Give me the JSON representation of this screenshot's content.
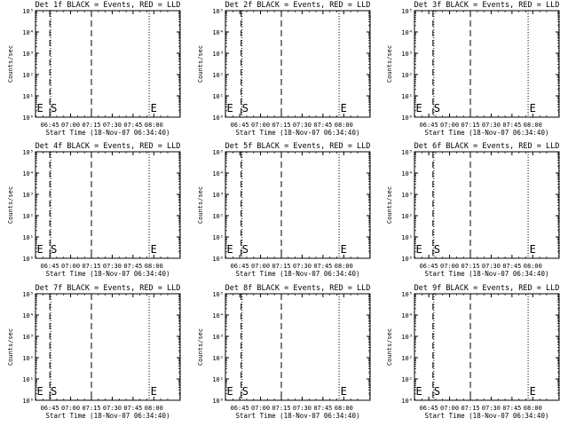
{
  "figure": {
    "ylabel": "Counts/sec",
    "start_time_label": "Start Time (18-Nov-07 06:34:40)",
    "x_tick_labels": [
      "06:45",
      "07:00",
      "07:15",
      "07:30",
      "07:45",
      "08:00"
    ],
    "y_tick_labels": [
      "10⁰",
      "10¹",
      "10²",
      "10³",
      "10⁴",
      "10⁵"
    ]
  },
  "chart_data": [
    {
      "type": "line",
      "title": "Det 1f BLACK = Events, RED = LLD",
      "xlabel": "Start Time (18-Nov-07 06:34:40)",
      "ylabel": "Counts/sec",
      "y_scale": "log",
      "ylim": [
        1,
        100000
      ],
      "xlim": [
        "06:34:40",
        "08:19"
      ],
      "x_ticks": [
        "06:45",
        "07:00",
        "07:15",
        "07:30",
        "07:45",
        "08:00"
      ],
      "y_ticks": [
        1,
        10,
        100,
        1000,
        10000,
        100000
      ],
      "series": [],
      "markers": [
        {
          "text": "E",
          "x": "06:35"
        },
        {
          "text": "S",
          "x": "06:45"
        },
        {
          "text": "E",
          "x": "07:57"
        }
      ],
      "vlines": {
        "dashed": [
          "06:45",
          "07:15"
        ],
        "dotted": [
          "06:45",
          "07:56",
          "08:18"
        ]
      }
    },
    {
      "type": "line",
      "title": "Det 2f BLACK = Events, RED = LLD",
      "xlabel": "Start Time (18-Nov-07 06:34:40)",
      "ylabel": "Counts/sec",
      "y_scale": "log",
      "ylim": [
        1,
        100000
      ],
      "xlim": [
        "06:34:40",
        "08:19"
      ],
      "x_ticks": [
        "06:45",
        "07:00",
        "07:15",
        "07:30",
        "07:45",
        "08:00"
      ],
      "y_ticks": [
        1,
        10,
        100,
        1000,
        10000,
        100000
      ],
      "series": [],
      "markers": [
        {
          "text": "E",
          "x": "06:35"
        },
        {
          "text": "S",
          "x": "06:46"
        },
        {
          "text": "E",
          "x": "07:57"
        }
      ],
      "vlines": {
        "dashed": [
          "06:46",
          "07:15"
        ],
        "dotted": [
          "06:46",
          "07:56",
          "08:18"
        ]
      }
    },
    {
      "type": "line",
      "title": "Det 3f BLACK = Events, RED = LLD",
      "xlabel": "Start Time (18-Nov-07 06:34:40)",
      "ylabel": "Counts/sec",
      "y_scale": "log",
      "ylim": [
        1,
        100000
      ],
      "xlim": [
        "06:34:40",
        "08:19"
      ],
      "x_ticks": [
        "06:45",
        "07:00",
        "07:15",
        "07:30",
        "07:45",
        "08:00"
      ],
      "y_ticks": [
        1,
        10,
        100,
        1000,
        10000,
        100000
      ],
      "series": [],
      "markers": [
        {
          "text": "E",
          "x": "06:35"
        },
        {
          "text": "S",
          "x": "06:48"
        },
        {
          "text": "E",
          "x": "07:57"
        }
      ],
      "vlines": {
        "dashed": [
          "06:48",
          "07:15"
        ],
        "dotted": [
          "06:48",
          "07:56",
          "08:18"
        ]
      }
    },
    {
      "type": "line",
      "title": "Det 4f BLACK = Events, RED = LLD",
      "xlabel": "Start Time (18-Nov-07 06:34:40)",
      "ylabel": "Counts/sec",
      "y_scale": "log",
      "ylim": [
        1,
        100000
      ],
      "xlim": [
        "06:34:40",
        "08:19"
      ],
      "x_ticks": [
        "06:45",
        "07:00",
        "07:15",
        "07:30",
        "07:45",
        "08:00"
      ],
      "y_ticks": [
        1,
        10,
        100,
        1000,
        10000,
        100000
      ],
      "series": [],
      "markers": [
        {
          "text": "E",
          "x": "06:35"
        },
        {
          "text": "S",
          "x": "06:45"
        },
        {
          "text": "E",
          "x": "07:57"
        }
      ],
      "vlines": {
        "dashed": [
          "06:45",
          "07:15"
        ],
        "dotted": [
          "06:45",
          "07:56",
          "08:18"
        ]
      }
    },
    {
      "type": "line",
      "title": "Det 5f BLACK = Events, RED = LLD",
      "xlabel": "Start Time (18-Nov-07 06:34:40)",
      "ylabel": "Counts/sec",
      "y_scale": "log",
      "ylim": [
        1,
        100000
      ],
      "xlim": [
        "06:34:40",
        "08:19"
      ],
      "x_ticks": [
        "06:45",
        "07:00",
        "07:15",
        "07:30",
        "07:45",
        "08:00"
      ],
      "y_ticks": [
        1,
        10,
        100,
        1000,
        10000,
        100000
      ],
      "series": [],
      "markers": [
        {
          "text": "E",
          "x": "06:35"
        },
        {
          "text": "S",
          "x": "06:46"
        },
        {
          "text": "E",
          "x": "07:57"
        }
      ],
      "vlines": {
        "dashed": [
          "06:46",
          "07:15"
        ],
        "dotted": [
          "06:46",
          "07:56",
          "08:18"
        ]
      }
    },
    {
      "type": "line",
      "title": "Det 6f BLACK = Events, RED = LLD",
      "xlabel": "Start Time (18-Nov-07 06:34:40)",
      "ylabel": "Counts/sec",
      "y_scale": "log",
      "ylim": [
        1,
        100000
      ],
      "xlim": [
        "06:34:40",
        "08:19"
      ],
      "x_ticks": [
        "06:45",
        "07:00",
        "07:15",
        "07:30",
        "07:45",
        "08:00"
      ],
      "y_ticks": [
        1,
        10,
        100,
        1000,
        10000,
        100000
      ],
      "series": [],
      "markers": [
        {
          "text": "E",
          "x": "06:35"
        },
        {
          "text": "S",
          "x": "06:48"
        },
        {
          "text": "E",
          "x": "07:57"
        }
      ],
      "vlines": {
        "dashed": [
          "06:48",
          "07:15"
        ],
        "dotted": [
          "06:48",
          "07:56",
          "08:18"
        ]
      }
    },
    {
      "type": "line",
      "title": "Det 7f BLACK = Events, RED = LLD",
      "xlabel": "Start Time (18-Nov-07 06:34:40)",
      "ylabel": "Counts/sec",
      "y_scale": "log",
      "ylim": [
        1,
        100000
      ],
      "xlim": [
        "06:34:40",
        "08:19"
      ],
      "x_ticks": [
        "06:45",
        "07:00",
        "07:15",
        "07:30",
        "07:45",
        "08:00"
      ],
      "y_ticks": [
        1,
        10,
        100,
        1000,
        10000,
        100000
      ],
      "series": [],
      "markers": [
        {
          "text": "E",
          "x": "06:35"
        },
        {
          "text": "S",
          "x": "06:45"
        },
        {
          "text": "E",
          "x": "07:57"
        }
      ],
      "vlines": {
        "dashed": [
          "06:45",
          "07:15"
        ],
        "dotted": [
          "06:45",
          "07:56",
          "08:18"
        ]
      }
    },
    {
      "type": "line",
      "title": "Det 8f BLACK = Events, RED = LLD",
      "xlabel": "Start Time (18-Nov-07 06:34:40)",
      "ylabel": "Counts/sec",
      "y_scale": "log",
      "ylim": [
        1,
        100000
      ],
      "xlim": [
        "06:34:40",
        "08:19"
      ],
      "x_ticks": [
        "06:45",
        "07:00",
        "07:15",
        "07:30",
        "07:45",
        "08:00"
      ],
      "y_ticks": [
        1,
        10,
        100,
        1000,
        10000,
        100000
      ],
      "series": [],
      "markers": [
        {
          "text": "E",
          "x": "06:35"
        },
        {
          "text": "S",
          "x": "06:46"
        },
        {
          "text": "E",
          "x": "07:57"
        }
      ],
      "vlines": {
        "dashed": [
          "06:46",
          "07:15"
        ],
        "dotted": [
          "06:46",
          "07:56",
          "08:18"
        ]
      }
    },
    {
      "type": "line",
      "title": "Det 9f BLACK = Events, RED = LLD",
      "xlabel": "Start Time (18-Nov-07 06:34:40)",
      "ylabel": "Counts/sec",
      "y_scale": "log",
      "ylim": [
        1,
        100000
      ],
      "xlim": [
        "06:34:40",
        "08:19"
      ],
      "x_ticks": [
        "06:45",
        "07:00",
        "07:15",
        "07:30",
        "07:45",
        "08:00"
      ],
      "y_ticks": [
        1,
        10,
        100,
        1000,
        10000,
        100000
      ],
      "series": [],
      "markers": [
        {
          "text": "E",
          "x": "06:35"
        },
        {
          "text": "S",
          "x": "06:48"
        },
        {
          "text": "E",
          "x": "07:57"
        }
      ],
      "vlines": {
        "dashed": [
          "06:48",
          "07:15"
        ],
        "dotted": [
          "06:48",
          "07:56",
          "08:18"
        ]
      }
    }
  ]
}
